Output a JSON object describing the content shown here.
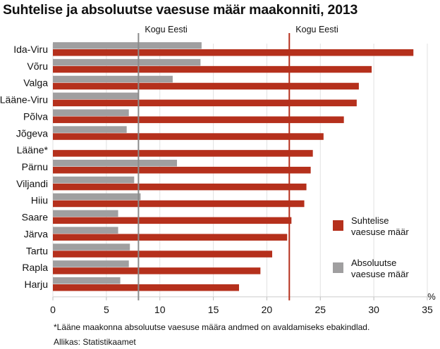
{
  "chart_data": {
    "type": "bar",
    "orientation": "horizontal",
    "title": "Suhtelise ja absoluutse vaesuse määr maakonniti, 2013",
    "xlabel": "%",
    "xlim": [
      0,
      35
    ],
    "xticks": [
      0,
      5,
      10,
      15,
      20,
      25,
      30,
      35
    ],
    "grid": true,
    "legend_position": "right",
    "categories": [
      "Ida-Viru",
      "Võru",
      "Valga",
      "Lääne-Viru",
      "Põlva",
      "Jõgeva",
      "Lääne*",
      "Pärnu",
      "Viljandi",
      "Hiiu",
      "Saare",
      "Järva",
      "Tartu",
      "Rapla",
      "Harju"
    ],
    "series": [
      {
        "name": "Absoluutse vaesuse määr",
        "color": "#a09fa0",
        "values": [
          13.9,
          13.8,
          11.2,
          8.0,
          7.1,
          6.9,
          null,
          11.6,
          7.6,
          8.2,
          6.1,
          6.1,
          7.2,
          7.1,
          6.3
        ]
      },
      {
        "name": "Suhtelise vaesuse määr",
        "color": "#b5301c",
        "values": [
          33.7,
          29.8,
          28.6,
          28.4,
          27.2,
          25.3,
          24.3,
          24.1,
          23.7,
          23.5,
          22.3,
          21.9,
          20.5,
          19.4,
          17.4
        ]
      }
    ],
    "reference_lines": [
      {
        "label": "Kogu Eesti",
        "value": 8.0,
        "series": "Absoluutse vaesuse määr",
        "color": "#8a8a8a"
      },
      {
        "label": "Kogu Eesti",
        "value": 22.1,
        "series": "Suhtelise vaesuse määr",
        "color": "#b5301c"
      }
    ],
    "legend": [
      {
        "label": [
          "Suhtelise",
          "vaesuse määr"
        ],
        "color": "#b5301c"
      },
      {
        "label": [
          "Absoluutse",
          "vaesuse määr"
        ],
        "color": "#a09fa0"
      }
    ]
  },
  "footnote": "*Lääne maakonna absoluutse vaesuse määra andmed on avaldamiseks ebakindlad.",
  "source": "Allikas: Statistikaamet"
}
